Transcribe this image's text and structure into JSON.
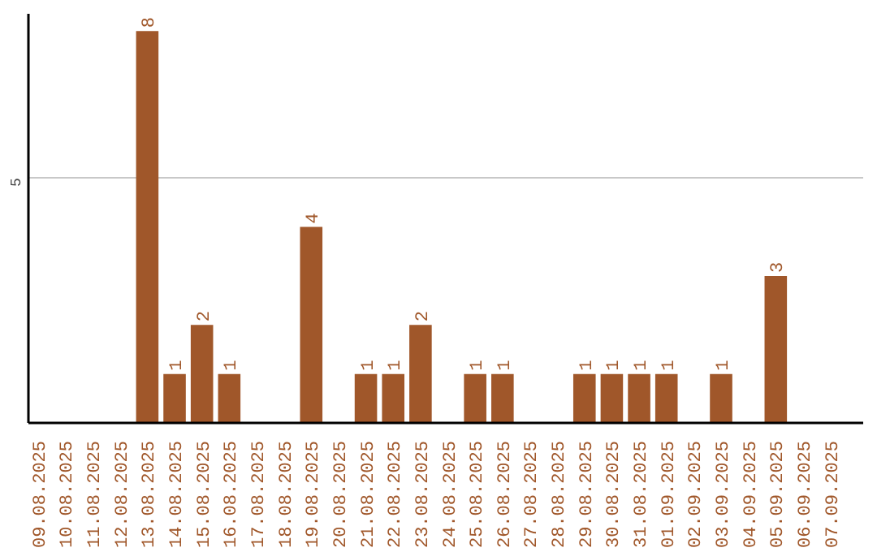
{
  "chart_data": {
    "type": "bar",
    "categories": [
      "09.08.2025",
      "10.08.2025",
      "11.08.2025",
      "12.08.2025",
      "13.08.2025",
      "14.08.2025",
      "15.08.2025",
      "16.08.2025",
      "17.08.2025",
      "18.08.2025",
      "19.08.2025",
      "20.08.2025",
      "21.08.2025",
      "22.08.2025",
      "23.08.2025",
      "24.08.2025",
      "25.08.2025",
      "26.08.2025",
      "27.08.2025",
      "28.08.2025",
      "29.08.2025",
      "30.08.2025",
      "31.08.2025",
      "01.09.2025",
      "02.09.2025",
      "03.09.2025",
      "04.09.2025",
      "05.09.2025",
      "06.09.2025",
      "07.09.2025"
    ],
    "values": [
      0,
      0,
      0,
      0,
      8,
      1,
      2,
      1,
      0,
      0,
      4,
      0,
      1,
      1,
      2,
      0,
      1,
      1,
      0,
      0,
      1,
      1,
      1,
      1,
      0,
      1,
      0,
      3,
      0,
      0
    ],
    "value_labels": [
      null,
      null,
      null,
      null,
      "8",
      "1",
      "2",
      "1",
      null,
      null,
      "4",
      null,
      "1",
      "1",
      "2",
      null,
      "1",
      "1",
      null,
      null,
      "1",
      "1",
      "1",
      "1",
      null,
      "1",
      null,
      "3",
      null,
      null
    ],
    "color": "#a0572a",
    "ylim": [
      0,
      8.35
    ],
    "yticks": [
      5
    ],
    "grid": "y"
  }
}
